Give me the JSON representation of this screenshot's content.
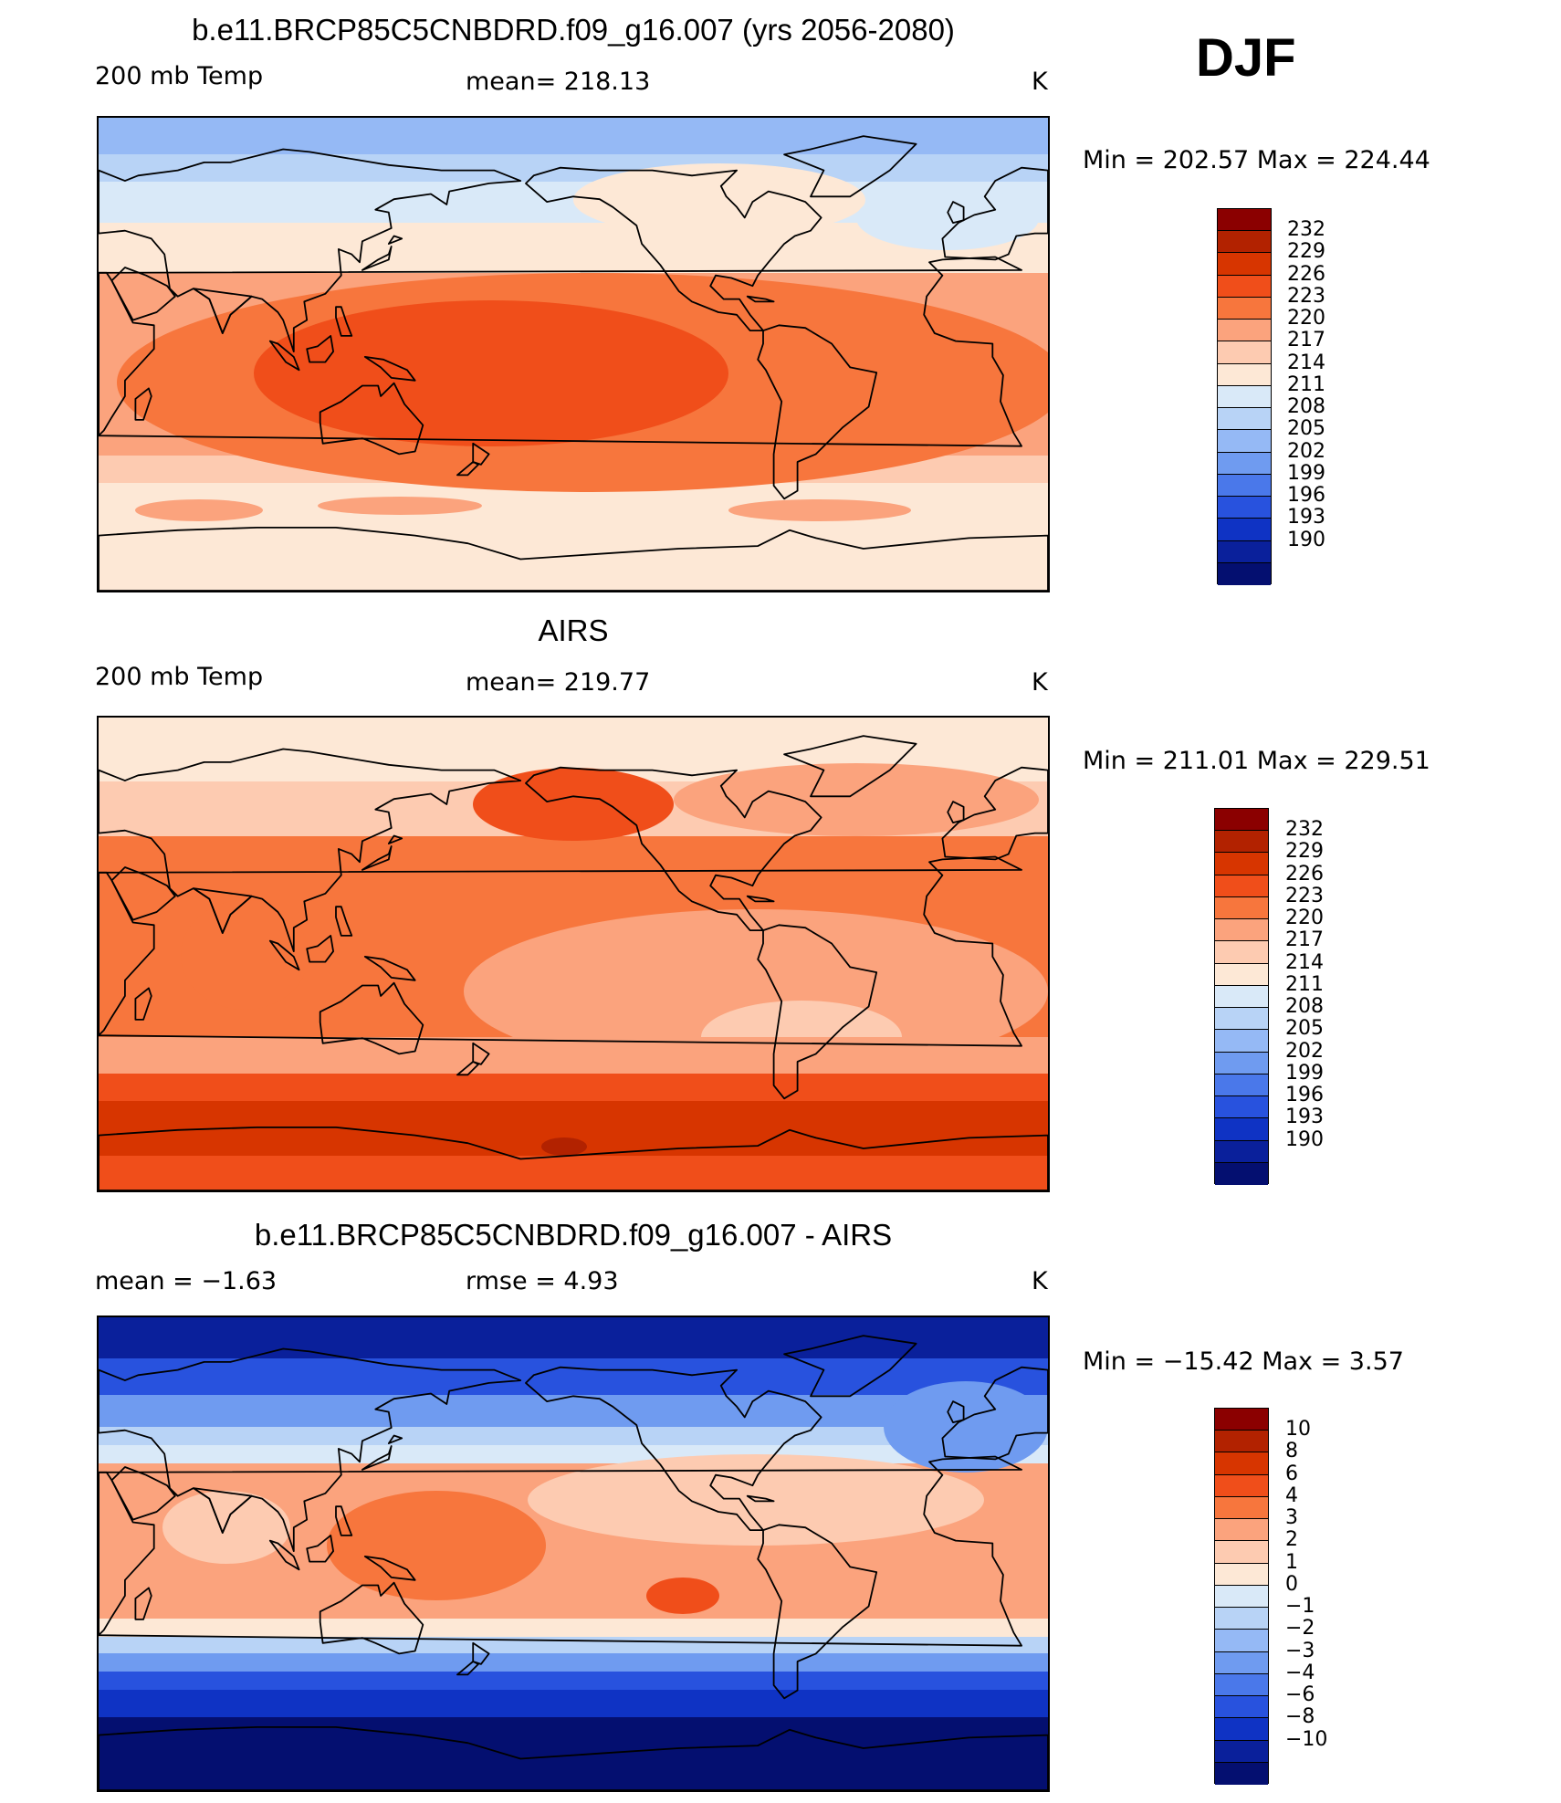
{
  "season": "DJF",
  "panels": [
    {
      "title": "b.e11.BRCP85C5CNBDRD.f09_g16.007 (yrs 2056-2080)",
      "left_label": "200 mb Temp",
      "center_label": "mean=  218.13",
      "units": "K",
      "minmax": "Min  =  202.57  Max  =  224.44",
      "colorbar": {
        "ticks": [
          "232",
          "229",
          "226",
          "223",
          "220",
          "217",
          "214",
          "211",
          "208",
          "205",
          "202",
          "199",
          "196",
          "193",
          "190"
        ],
        "colors": [
          "#8b0000",
          "#b22200",
          "#d73500",
          "#f04e1a",
          "#f7763d",
          "#fba37d",
          "#fdcbb1",
          "#fde8d6",
          "#d9e9f8",
          "#b8d3f6",
          "#95b9f5",
          "#6f9bf0",
          "#4a78ea",
          "#2852de",
          "#0f33c4",
          "#0a209b",
          "#040f70"
        ]
      },
      "map_field": "model"
    },
    {
      "title": "AIRS",
      "left_label": "200 mb Temp",
      "center_label": "mean=  219.77",
      "units": "K",
      "minmax": "Min  =  211.01  Max  =  229.51",
      "colorbar": {
        "ticks": [
          "232",
          "229",
          "226",
          "223",
          "220",
          "217",
          "214",
          "211",
          "208",
          "205",
          "202",
          "199",
          "196",
          "193",
          "190"
        ],
        "colors": [
          "#8b0000",
          "#b22200",
          "#d73500",
          "#f04e1a",
          "#f7763d",
          "#fba37d",
          "#fdcbb1",
          "#fde8d6",
          "#d9e9f8",
          "#b8d3f6",
          "#95b9f5",
          "#6f9bf0",
          "#4a78ea",
          "#2852de",
          "#0f33c4",
          "#0a209b",
          "#040f70"
        ]
      },
      "map_field": "obs"
    },
    {
      "title": "b.e11.BRCP85C5CNBDRD.f09_g16.007 - AIRS",
      "left_label": "mean  =    −1.63",
      "center_label": "rmse  =      4.93",
      "units": "K",
      "minmax": "Min  =  −15.42  Max  =      3.57",
      "colorbar": {
        "ticks": [
          "10",
          "8",
          "6",
          "4",
          "3",
          "2",
          "1",
          "0",
          "−1",
          "−2",
          "−3",
          "−4",
          "−6",
          "−8",
          "−10"
        ],
        "colors": [
          "#8b0000",
          "#b22200",
          "#d73500",
          "#f04e1a",
          "#f7763d",
          "#fba37d",
          "#fdcbb1",
          "#fde8d6",
          "#d9e9f8",
          "#b8d3f6",
          "#95b9f5",
          "#6f9bf0",
          "#4a78ea",
          "#2852de",
          "#0f33c4",
          "#0a209b",
          "#040f70"
        ]
      },
      "map_field": "diff"
    }
  ],
  "colors": {
    "dark_red": "#8b0000",
    "dark_blue": "#040f70",
    "coastline": "#000000"
  }
}
